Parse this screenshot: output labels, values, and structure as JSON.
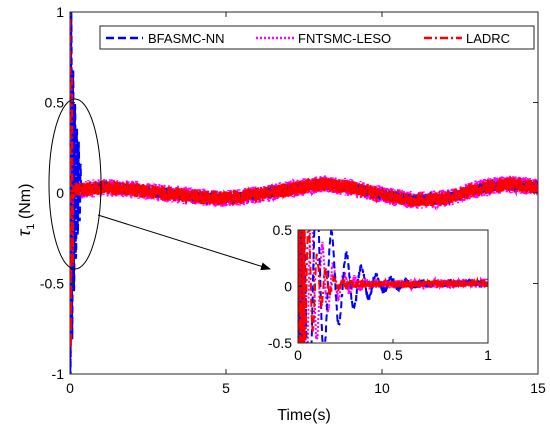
{
  "chart_data": {
    "type": "line",
    "title": "",
    "xlabel": "Time(s)",
    "ylabel_main": "τ",
    "ylabel_sub": "1",
    "ylabel_unit": " (Nm)",
    "xlim": [
      0,
      15
    ],
    "ylim": [
      -1,
      1
    ],
    "xticks": [
      "0",
      "5",
      "10",
      "15"
    ],
    "xtick_values": [
      0,
      5,
      10,
      15
    ],
    "yticks": [
      "1",
      "0.5",
      "0",
      "-0.5",
      "-1"
    ],
    "ytick_values": [
      1,
      0.5,
      0,
      -0.5,
      -1
    ],
    "grid": false,
    "legend_position": "top-right",
    "series": [
      {
        "name": "BFASMC-NN",
        "color": "#0000ff",
        "style": "dashed"
      },
      {
        "name": "FNTSMC-LESO",
        "color": "#ff00ff",
        "style": "dotted"
      },
      {
        "name": "LADRC",
        "color": "#ff0000",
        "style": "dashdot"
      }
    ],
    "steady_state": {
      "description_values": {
        "x": [
          0.5,
          1,
          2,
          3,
          4,
          5,
          6,
          7,
          8,
          9,
          10,
          11,
          12,
          13,
          14,
          15
        ],
        "y": [
          0.02,
          0.03,
          0.02,
          0.0,
          -0.02,
          -0.03,
          -0.01,
          0.02,
          0.05,
          0.03,
          -0.01,
          -0.04,
          -0.03,
          0.02,
          0.05,
          0.03
        ]
      }
    },
    "inset": {
      "xlim": [
        0,
        1
      ],
      "ylim": [
        -0.5,
        0.5
      ],
      "xticks": [
        "0",
        "0.5",
        "1"
      ],
      "xtick_values": [
        0,
        0.5,
        1
      ],
      "yticks": [
        "0.5",
        "0",
        "-0.5"
      ],
      "ytick_values": [
        0.5,
        0,
        -0.5
      ]
    }
  }
}
